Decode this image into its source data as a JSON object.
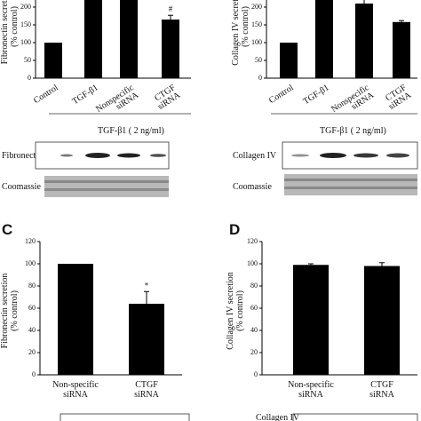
{
  "chart_data": [
    {
      "type": "bar",
      "ylabel": [
        "Fibronectin secretion",
        "(% control)"
      ],
      "categories": [
        [
          "Control"
        ],
        [
          "TGF-β1"
        ],
        [
          "Nonspecific",
          "siRNA"
        ],
        [
          "CTGF",
          "siRNA"
        ]
      ],
      "values": [
        100,
        235,
        235,
        165
      ],
      "errors": [
        0,
        10,
        10,
        12
      ],
      "marks": [
        null,
        null,
        null,
        "#"
      ],
      "color": "#000000",
      "ylim": [
        0,
        250
      ],
      "yticks": [
        0,
        50,
        100,
        150,
        200
      ]
    },
    {
      "type": "bar",
      "ylabel": [
        "Collagen IV secretion",
        "(% control)"
      ],
      "categories": [
        [
          "Control"
        ],
        [
          "TGF-β1"
        ],
        [
          "Nonspecific",
          "siRNA"
        ],
        [
          "CTGF",
          "siRNA"
        ]
      ],
      "values": [
        100,
        235,
        210,
        158
      ],
      "errors": [
        0,
        10,
        15,
        4
      ],
      "color": "#000000",
      "ylim": [
        0,
        250
      ],
      "yticks": [
        0,
        50,
        100,
        150,
        200
      ]
    },
    {
      "type": "bar",
      "panel": "C",
      "ylabel": [
        "Fibronectin secretion",
        "(% control)"
      ],
      "categories": [
        [
          "Non-specific",
          "siRNA"
        ],
        [
          "CTGF",
          "siRNA"
        ]
      ],
      "values": [
        100,
        64
      ],
      "errors": [
        0,
        11
      ],
      "marks": [
        null,
        "*"
      ],
      "color": "#000000",
      "ylim": [
        0,
        120
      ],
      "yticks": [
        0,
        20,
        40,
        60,
        80,
        100,
        120
      ]
    },
    {
      "type": "bar",
      "panel": "D",
      "ylabel": [
        "Collagen IV secretion",
        "(% control)"
      ],
      "categories": [
        [
          "Non-specific",
          "siRNA"
        ],
        [
          "CTGF",
          "siRNA"
        ]
      ],
      "values": [
        99,
        98
      ],
      "errors": [
        1,
        3
      ],
      "color": "#000000",
      "ylim": [
        0,
        120
      ],
      "yticks": [
        0,
        20,
        40,
        60,
        80,
        100,
        120
      ]
    }
  ],
  "blots": [
    {
      "treatment": "TGF-β1 ( 2 ng/ml)",
      "rows": [
        "Fibronectin",
        "Coomassie"
      ]
    },
    {
      "treatment": "TGF-β1 ( 2 ng/ml)",
      "rows": [
        "Collagen IV",
        "Coomassie"
      ]
    }
  ],
  "bottom_label": "Collagen IV"
}
